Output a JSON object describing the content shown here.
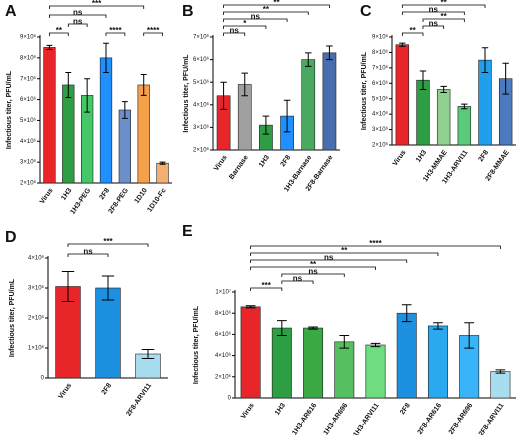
{
  "chart_data": [
    {
      "type": "bar",
      "panel": "A",
      "ylabel": "Infectious titer, PFU/mL",
      "categories": [
        "Virus",
        "1H3",
        "1H3-PEG",
        "2F8",
        "2F8-PEG",
        "1D10",
        "1D10-Fc"
      ],
      "values": [
        8500000,
        6700000,
        6200000,
        8000000,
        5500000,
        6700000,
        2950000
      ],
      "errors": [
        100000,
        600000,
        800000,
        700000,
        400000,
        500000,
        50000
      ],
      "colors": [
        "#e8262a",
        "#2e9e45",
        "#44c767",
        "#1e90ff",
        "#6d8fc9",
        "#f5a04a",
        "#f2b070"
      ],
      "ylim": [
        2000000,
        9000000
      ],
      "yticks": [
        {
          "value": 2000000,
          "label": "2×10⁶"
        },
        {
          "value": 3000000,
          "label": "3×10⁶"
        },
        {
          "value": 4000000,
          "label": "4×10⁶"
        },
        {
          "value": 5000000,
          "label": "5×10⁶"
        },
        {
          "value": 6000000,
          "label": "6×10⁶"
        },
        {
          "value": 7000000,
          "label": "7×10⁶"
        },
        {
          "value": 8000000,
          "label": "8×10⁶"
        },
        {
          "value": 9000000,
          "label": "9×10⁶"
        }
      ],
      "comparisons": [
        {
          "from": 0,
          "to": 1,
          "label": "**"
        },
        {
          "from": 1,
          "to": 2,
          "label": "ns"
        },
        {
          "from": 3,
          "to": 4,
          "label": "****"
        },
        {
          "from": 5,
          "to": 6,
          "label": "****"
        },
        {
          "from": 0,
          "to": 3,
          "label": "ns"
        },
        {
          "from": 0,
          "to": 5,
          "label": "***"
        }
      ]
    },
    {
      "type": "bar",
      "panel": "B",
      "ylabel": "Infectious titer, PFU/mL",
      "categories": [
        "Virus",
        "Barnase",
        "1H3",
        "2F8",
        "1H3-Barnase",
        "2F8-Barnase"
      ],
      "values": [
        4400000,
        4900000,
        3100000,
        3500000,
        6000000,
        6300000
      ],
      "errors": [
        600000,
        500000,
        400000,
        700000,
        300000,
        300000
      ],
      "colors": [
        "#e8262a",
        "#a0a0a0",
        "#2e9e45",
        "#1e90ff",
        "#4aa860",
        "#4a6db0"
      ],
      "ylim": [
        2000000,
        7000000
      ],
      "yticks": [
        {
          "value": 2000000,
          "label": "2×10⁶"
        },
        {
          "value": 3000000,
          "label": "3×10⁶"
        },
        {
          "value": 4000000,
          "label": "4×10⁶"
        },
        {
          "value": 5000000,
          "label": "5×10⁶"
        },
        {
          "value": 6000000,
          "label": "6×10⁶"
        },
        {
          "value": 7000000,
          "label": "7×10⁶"
        }
      ],
      "comparisons": [
        {
          "from": 0,
          "to": 1,
          "label": "ns"
        },
        {
          "from": 0,
          "to": 2,
          "label": "*"
        },
        {
          "from": 0,
          "to": 3,
          "label": "ns"
        },
        {
          "from": 0,
          "to": 4,
          "label": "**"
        },
        {
          "from": 0,
          "to": 5,
          "label": "**"
        }
      ]
    },
    {
      "type": "bar",
      "panel": "C",
      "ylabel": "Infectious titer, PFU/mL",
      "categories": [
        "Virus",
        "1H3",
        "1H3-MMAE",
        "1H3-ARVI11",
        "2F8",
        "2F8-MMAE"
      ],
      "values": [
        8500000,
        6200000,
        5600000,
        4500000,
        7500000,
        6300000
      ],
      "errors": [
        100000,
        600000,
        200000,
        150000,
        800000,
        1000000
      ],
      "colors": [
        "#e8262a",
        "#2e9e45",
        "#8fd08f",
        "#5cc87a",
        "#20a0ec",
        "#4a7ac0"
      ],
      "ylim": [
        2000000,
        9000000
      ],
      "yticks": [
        {
          "value": 2000000,
          "label": "2×10⁶"
        },
        {
          "value": 3000000,
          "label": "3×10⁶"
        },
        {
          "value": 4000000,
          "label": "4×10⁶"
        },
        {
          "value": 5000000,
          "label": "5×10⁶"
        },
        {
          "value": 6000000,
          "label": "6×10⁶"
        },
        {
          "value": 7000000,
          "label": "7×10⁶"
        },
        {
          "value": 8000000,
          "label": "8×10⁶"
        },
        {
          "value": 9000000,
          "label": "9×10⁶"
        }
      ],
      "comparisons": [
        {
          "from": 0,
          "to": 1,
          "label": "**"
        },
        {
          "from": 1,
          "to": 2,
          "label": "ns"
        },
        {
          "from": 1,
          "to": 3,
          "label": "**"
        },
        {
          "from": 0,
          "to": 3,
          "label": "ns"
        },
        {
          "from": 0,
          "to": 4,
          "label": "**"
        }
      ]
    },
    {
      "type": "bar",
      "panel": "D",
      "ylabel": "Infectious titer, PFU/mL",
      "categories": [
        "Virus",
        "2F8",
        "2F8-ARVI11"
      ],
      "values": [
        3050000,
        3000000,
        800000
      ],
      "errors": [
        500000,
        400000,
        150000
      ],
      "colors": [
        "#e8262a",
        "#1e90e0",
        "#a8dcef"
      ],
      "ylim": [
        0,
        4000000
      ],
      "yticks": [
        0,
        {
          "value": 1000000,
          "label": "1×10⁶"
        },
        {
          "value": 2000000,
          "label": "2×10⁶"
        },
        {
          "value": 3000000,
          "label": "3×10⁶"
        },
        {
          "value": 4000000,
          "label": "4×10⁶"
        }
      ],
      "comparisons": [
        {
          "from": 0,
          "to": 1,
          "label": "ns"
        },
        {
          "from": 0,
          "to": 2,
          "label": "***"
        }
      ]
    },
    {
      "type": "bar",
      "panel": "E",
      "ylabel": "Infectious titer, PFU/mL",
      "categories": [
        "Virus",
        "1H3",
        "1H3-AR616",
        "1H3-AR696",
        "1H3-ARVI11",
        "2F8",
        "2F8-AR616",
        "2F8-AR696",
        "2F8-ARVI11"
      ],
      "values": [
        8600000,
        6600000,
        6600000,
        5300000,
        5000000,
        8000000,
        6800000,
        5900000,
        2500000
      ],
      "errors": [
        100000,
        700000,
        100000,
        600000,
        150000,
        800000,
        300000,
        1200000,
        150000
      ],
      "colors": [
        "#e8262a",
        "#2e9e45",
        "#3aa845",
        "#56c060",
        "#6fdc80",
        "#1e90e0",
        "#2aa8f0",
        "#3ab4f8",
        "#a8dcef"
      ],
      "ylim": [
        0,
        10000000
      ],
      "yticks": [
        0,
        {
          "value": 2000000,
          "label": "2×10⁶"
        },
        {
          "value": 4000000,
          "label": "4×10⁶"
        },
        {
          "value": 6000000,
          "label": "6×10⁶"
        },
        {
          "value": 8000000,
          "label": "8×10⁶"
        },
        {
          "value": 10000000,
          "label": "1×10⁷"
        }
      ],
      "comparisons": [
        {
          "from": 0,
          "to": 1,
          "label": "***"
        },
        {
          "from": 1,
          "to": 2,
          "label": "ns"
        },
        {
          "from": 1,
          "to": 3,
          "label": "ns"
        },
        {
          "from": 0,
          "to": 4,
          "label": "**"
        },
        {
          "from": 0,
          "to": 5,
          "label": "ns"
        },
        {
          "from": 0,
          "to": 6,
          "label": "**"
        },
        {
          "from": 0,
          "to": 8,
          "label": "****"
        }
      ]
    }
  ]
}
